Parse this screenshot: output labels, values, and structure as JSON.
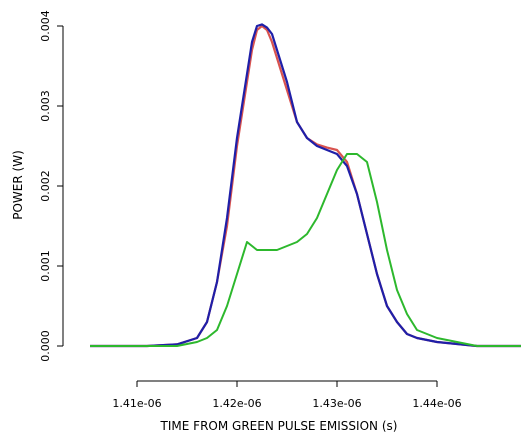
{
  "chart_data": {
    "type": "line",
    "title": "",
    "xlabel": "TIME FROM GREEN PULSE EMISSION (s)",
    "ylabel": "POWER (W)",
    "xlim": [
      1.4053e-06,
      1.4484e-06
    ],
    "ylim": [
      -0.0001,
      0.0041
    ],
    "x_ticks": [
      1.41e-06,
      1.42e-06,
      1.43e-06,
      1.44e-06
    ],
    "x_tick_labels": [
      "1.41e-06",
      "1.42e-06",
      "1.43e-06",
      "1.44e-06"
    ],
    "y_ticks": [
      0.0,
      0.001,
      0.002,
      0.003,
      0.004
    ],
    "y_tick_labels": [
      "0.000",
      "0.001",
      "0.002",
      "0.003",
      "0.004"
    ],
    "grid": false,
    "series": [
      {
        "color": "#d9534f",
        "x": [
          1.4053e-06,
          1.408e-06,
          1.411e-06,
          1.414e-06,
          1.416e-06,
          1.417e-06,
          1.418e-06,
          1.419e-06,
          1.42e-06,
          1.421e-06,
          1.4215e-06,
          1.422e-06,
          1.4225e-06,
          1.423e-06,
          1.4235e-06,
          1.424e-06,
          1.425e-06,
          1.426e-06,
          1.427e-06,
          1.428e-06,
          1.429e-06,
          1.43e-06,
          1.431e-06,
          1.432e-06,
          1.433e-06,
          1.434e-06,
          1.435e-06,
          1.436e-06,
          1.437e-06,
          1.438e-06,
          1.44e-06,
          1.444e-06,
          1.4484e-06
        ],
        "y": [
          0.0,
          0.0,
          0.0,
          2e-05,
          0.0001,
          0.0003,
          0.0008,
          0.0015,
          0.0025,
          0.0033,
          0.0037,
          0.00395,
          0.004,
          0.00395,
          0.0038,
          0.0036,
          0.0032,
          0.0028,
          0.0026,
          0.00252,
          0.00248,
          0.00245,
          0.0023,
          0.0019,
          0.0014,
          0.0009,
          0.0005,
          0.0003,
          0.00015,
          0.0001,
          5e-05,
          0.0,
          0.0
        ]
      },
      {
        "color": "#1f1fa8",
        "x": [
          1.4053e-06,
          1.408e-06,
          1.411e-06,
          1.414e-06,
          1.416e-06,
          1.417e-06,
          1.418e-06,
          1.419e-06,
          1.42e-06,
          1.421e-06,
          1.4215e-06,
          1.422e-06,
          1.4225e-06,
          1.423e-06,
          1.4235e-06,
          1.424e-06,
          1.425e-06,
          1.426e-06,
          1.427e-06,
          1.428e-06,
          1.429e-06,
          1.43e-06,
          1.431e-06,
          1.432e-06,
          1.433e-06,
          1.434e-06,
          1.435e-06,
          1.436e-06,
          1.437e-06,
          1.438e-06,
          1.44e-06,
          1.444e-06,
          1.4484e-06
        ],
        "y": [
          0.0,
          0.0,
          0.0,
          2e-05,
          0.0001,
          0.0003,
          0.0008,
          0.0016,
          0.0026,
          0.0034,
          0.0038,
          0.004,
          0.00402,
          0.00398,
          0.0039,
          0.0037,
          0.0033,
          0.0028,
          0.0026,
          0.0025,
          0.00245,
          0.0024,
          0.00225,
          0.0019,
          0.0014,
          0.0009,
          0.0005,
          0.0003,
          0.00015,
          0.0001,
          5e-05,
          0.0,
          0.0
        ]
      },
      {
        "color": "#2db82d",
        "x": [
          1.4053e-06,
          1.41e-06,
          1.414e-06,
          1.416e-06,
          1.417e-06,
          1.418e-06,
          1.419e-06,
          1.42e-06,
          1.421e-06,
          1.422e-06,
          1.423e-06,
          1.424e-06,
          1.425e-06,
          1.426e-06,
          1.427e-06,
          1.428e-06,
          1.429e-06,
          1.43e-06,
          1.431e-06,
          1.432e-06,
          1.433e-06,
          1.434e-06,
          1.435e-06,
          1.436e-06,
          1.437e-06,
          1.438e-06,
          1.44e-06,
          1.444e-06,
          1.4484e-06
        ],
        "y": [
          0.0,
          0.0,
          0.0,
          5e-05,
          0.0001,
          0.0002,
          0.0005,
          0.0009,
          0.0013,
          0.0012,
          0.0012,
          0.0012,
          0.00125,
          0.0013,
          0.0014,
          0.0016,
          0.0019,
          0.0022,
          0.0024,
          0.0024,
          0.0023,
          0.0018,
          0.0012,
          0.0007,
          0.0004,
          0.0002,
          0.0001,
          0.0,
          0.0
        ]
      }
    ]
  }
}
